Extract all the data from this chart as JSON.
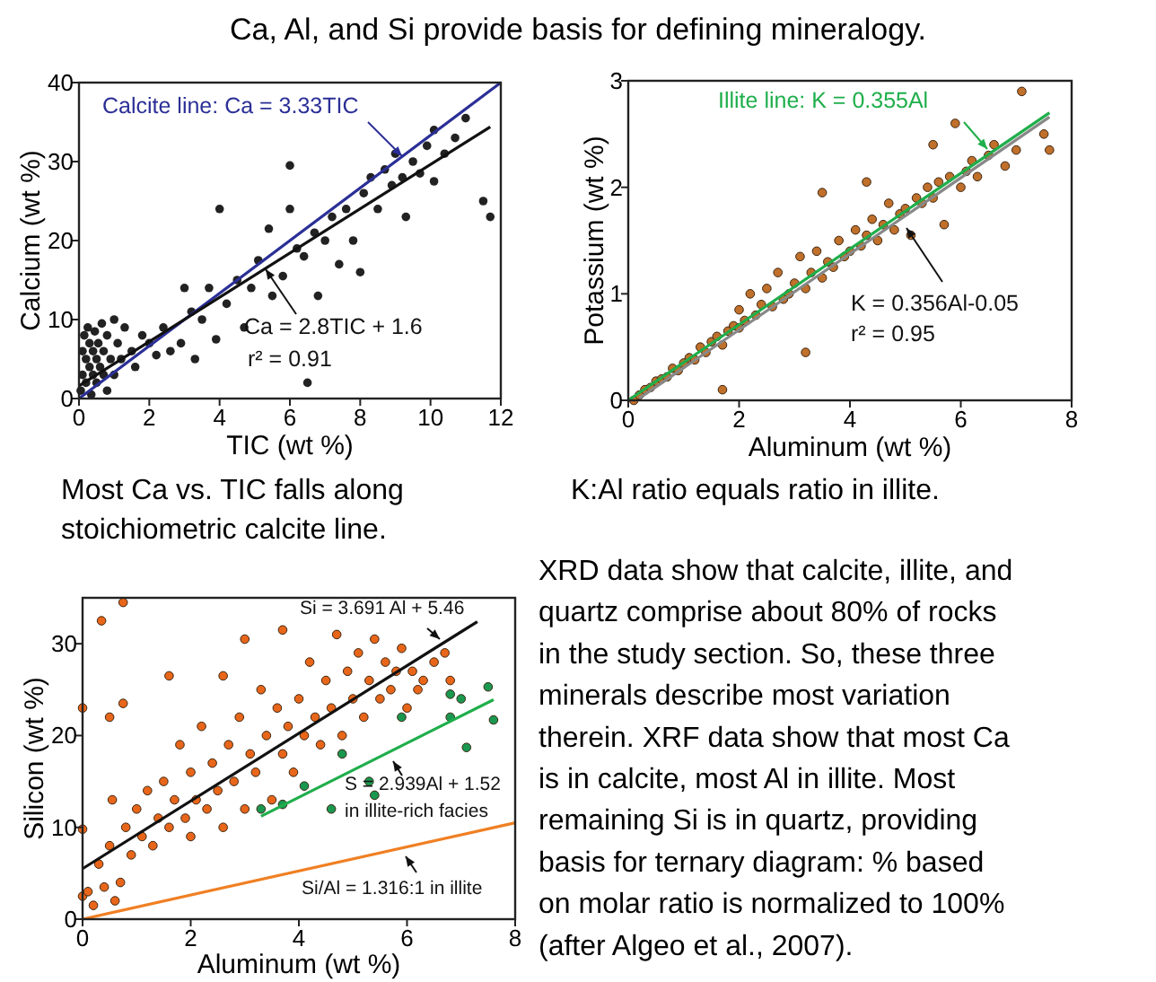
{
  "chart_data": [
    {
      "type": "scatter",
      "xlabel": "TIC (wt %)",
      "ylabel": "Calcium (wt %)",
      "xlim": [
        0,
        12
      ],
      "ylim": [
        0,
        40
      ],
      "xticks": [
        0,
        2,
        4,
        6,
        8,
        10,
        12
      ],
      "yticks": [
        0,
        10,
        20,
        30,
        40
      ],
      "marker": "circle",
      "annotations": [
        "Calcite line: Ca = 3.33TIC",
        "Ca = 2.8TIC + 1.6",
        "r² = 0.91",
        "Most Ca vs. TIC falls along stoichiometric calcite line."
      ],
      "series": [
        {
          "type": "scatter",
          "color": "#222222",
          "x": [
            0.05,
            0.1,
            0.1,
            0.15,
            0.2,
            0.2,
            0.25,
            0.3,
            0.3,
            0.35,
            0.4,
            0.4,
            0.45,
            0.5,
            0.5,
            0.55,
            0.6,
            0.65,
            0.7,
            0.7,
            0.8,
            0.8,
            0.9,
            1.0,
            1.0,
            1.1,
            1.2,
            1.3,
            1.5,
            1.6,
            1.8,
            2.0,
            2.2,
            2.4,
            2.6,
            2.9,
            3.0,
            3.2,
            3.3,
            3.5,
            3.7,
            3.9,
            4.0,
            4.2,
            4.5,
            4.7,
            4.9,
            5.1,
            5.4,
            5.5,
            5.8,
            6.0,
            6.0,
            6.2,
            6.4,
            6.5,
            6.7,
            6.8,
            7.0,
            7.2,
            7.4,
            7.6,
            7.8,
            8.0,
            8.1,
            8.3,
            8.5,
            8.7,
            8.9,
            9.0,
            9.2,
            9.3,
            9.5,
            9.7,
            9.9,
            10.1,
            10.1,
            10.4,
            10.7,
            11.0,
            11.5,
            11.7
          ],
          "values": [
            1,
            3,
            6,
            8,
            2,
            5,
            9,
            4,
            7,
            0.5,
            3,
            6,
            8.5,
            2,
            5,
            7,
            4,
            9.5,
            3,
            6,
            1,
            8,
            5,
            3,
            10,
            7,
            5,
            9,
            6,
            4,
            8,
            7,
            5.5,
            9,
            6,
            7,
            14,
            11,
            5,
            10,
            14,
            7.5,
            24,
            12,
            15,
            9,
            14,
            17.5,
            21.5,
            13,
            15.5,
            29.5,
            24,
            19,
            18,
            2,
            21,
            13,
            20,
            23,
            17,
            24,
            20,
            16,
            26,
            28,
            24,
            29,
            27,
            31,
            28,
            23,
            30,
            28.5,
            32,
            34,
            27.5,
            31,
            33,
            35.5,
            25,
            23
          ]
        },
        {
          "type": "line",
          "marker": "none",
          "color": "#2b2f96",
          "x": [
            0,
            12
          ],
          "values": [
            0,
            40
          ]
        },
        {
          "type": "line",
          "marker": "none",
          "color": "#111111",
          "x": [
            0,
            11.7
          ],
          "values": [
            1.6,
            34.4
          ]
        }
      ]
    },
    {
      "type": "scatter",
      "xlabel": "Aluminum (wt %)",
      "ylabel": "Potassium (wt %)",
      "xlim": [
        0,
        8
      ],
      "ylim": [
        0,
        3
      ],
      "xticks": [
        0,
        2,
        4,
        6,
        8
      ],
      "yticks": [
        0,
        1,
        2,
        3
      ],
      "marker": "circle",
      "annotations": [
        "Illite line: K = 0.355Al",
        "K = 0.356Al-0.05",
        "r² = 0.95",
        "K:Al ratio equals ratio in illite."
      ],
      "series": [
        {
          "type": "scatter",
          "color": "#c0702a",
          "x": [
            0.1,
            0.2,
            0.3,
            0.4,
            0.5,
            0.6,
            0.7,
            0.8,
            0.9,
            1.0,
            1.1,
            1.2,
            1.3,
            1.4,
            1.5,
            1.6,
            1.7,
            1.7,
            1.8,
            1.9,
            2.0,
            2.0,
            2.1,
            2.2,
            2.3,
            2.4,
            2.5,
            2.6,
            2.7,
            2.8,
            2.9,
            3.0,
            3.1,
            3.2,
            3.2,
            3.3,
            3.4,
            3.5,
            3.5,
            3.6,
            3.7,
            3.8,
            3.9,
            4.0,
            4.1,
            4.2,
            4.3,
            4.3,
            4.4,
            4.5,
            4.6,
            4.7,
            4.8,
            4.9,
            5.0,
            5.1,
            5.2,
            5.3,
            5.4,
            5.5,
            5.5,
            5.6,
            5.7,
            5.8,
            5.9,
            6.0,
            6.1,
            6.2,
            6.3,
            6.5,
            6.6,
            6.8,
            7.0,
            7.1,
            7.5,
            7.6
          ],
          "values": [
            0.0,
            0.05,
            0.1,
            0.12,
            0.18,
            0.2,
            0.22,
            0.3,
            0.28,
            0.35,
            0.4,
            0.38,
            0.5,
            0.45,
            0.55,
            0.6,
            0.1,
            0.52,
            0.65,
            0.7,
            0.68,
            0.85,
            0.75,
            1.0,
            0.8,
            0.9,
            1.05,
            0.88,
            1.2,
            0.95,
            1.0,
            1.1,
            1.35,
            0.45,
            1.05,
            1.2,
            1.4,
            1.95,
            1.15,
            1.3,
            1.25,
            1.5,
            1.35,
            1.4,
            1.6,
            1.45,
            2.05,
            1.55,
            1.7,
            1.5,
            1.65,
            1.85,
            1.6,
            1.75,
            1.8,
            1.55,
            1.9,
            1.85,
            2.0,
            2.4,
            1.9,
            2.05,
            1.65,
            2.1,
            2.6,
            2.0,
            2.15,
            2.25,
            2.1,
            2.3,
            2.4,
            2.2,
            2.35,
            2.9,
            2.5,
            2.35
          ]
        },
        {
          "type": "line",
          "marker": "none",
          "color": "#888888",
          "x": [
            0.2,
            7.6
          ],
          "values": [
            0.02,
            2.66
          ]
        },
        {
          "type": "line",
          "marker": "none",
          "color": "#1fae4b",
          "x": [
            0,
            7.6
          ],
          "values": [
            0,
            2.7
          ]
        }
      ]
    },
    {
      "type": "scatter",
      "xlabel": "Aluminum (wt %)",
      "ylabel": "Silicon (wt %)",
      "xlim": [
        0,
        8
      ],
      "ylim": [
        0,
        35
      ],
      "xticks": [
        0,
        2,
        4,
        6,
        8
      ],
      "yticks": [
        0,
        10,
        20,
        30
      ],
      "marker": "circle",
      "annotations": [
        "Si = 3.691 Al + 5.46",
        "S = 2.939Al + 1.52",
        "in illite-rich facies",
        "Si/Al = 1.316:1 in illite"
      ],
      "series": [
        {
          "type": "scatter",
          "color": "#e8661a",
          "x": [
            0,
            0,
            0,
            0.1,
            0.2,
            0.3,
            0.35,
            0.4,
            0.5,
            0.5,
            0.55,
            0.6,
            0.7,
            0.75,
            0.75,
            0.8,
            0.9,
            1.0,
            1.1,
            1.2,
            1.3,
            1.4,
            1.5,
            1.6,
            1.6,
            1.7,
            1.8,
            1.9,
            2.0,
            2.0,
            2.1,
            2.2,
            2.3,
            2.4,
            2.5,
            2.6,
            2.6,
            2.7,
            2.8,
            2.9,
            3.0,
            3.0,
            3.1,
            3.2,
            3.3,
            3.4,
            3.5,
            3.6,
            3.7,
            3.7,
            3.8,
            3.9,
            4.0,
            4.1,
            4.2,
            4.3,
            4.4,
            4.5,
            4.6,
            4.7,
            4.8,
            4.9,
            5.0,
            5.1,
            5.2,
            5.3,
            5.4,
            5.5,
            5.6,
            5.7,
            5.8,
            5.9,
            6.0,
            6.1,
            6.2,
            6.3,
            6.5,
            6.7,
            6.8
          ],
          "values": [
            2.5,
            9.8,
            23,
            3,
            1.5,
            6,
            32.5,
            3.5,
            22,
            8,
            13,
            2,
            4,
            34.5,
            23.5,
            10,
            7,
            12,
            9,
            14,
            8,
            11,
            15,
            26.5,
            10,
            13,
            19,
            11,
            16,
            9,
            13,
            21,
            12,
            17,
            14,
            26.5,
            10,
            19,
            15,
            22,
            12,
            30.5,
            18,
            16,
            25,
            20,
            13,
            23,
            31.5,
            18,
            21,
            16,
            24,
            20,
            28,
            22,
            19,
            26,
            23,
            31,
            20,
            27,
            24,
            29,
            22,
            26,
            30.5,
            24,
            28,
            25,
            27,
            29.5,
            23,
            27,
            25,
            26,
            28,
            29,
            26
          ]
        },
        {
          "type": "scatter",
          "color": "#1a9850",
          "x": [
            3.3,
            3.7,
            4.1,
            4.6,
            4.8,
            5.3,
            5.4,
            5.9,
            6.8,
            6.8,
            7.0,
            7.1,
            7.5,
            7.6
          ],
          "values": [
            12,
            12.5,
            14.5,
            12,
            18,
            15,
            13.5,
            22,
            24.5,
            22,
            24,
            18.7,
            25.3,
            21.7
          ]
        },
        {
          "type": "line",
          "marker": "none",
          "color": "#111111",
          "x": [
            0,
            7.3
          ],
          "values": [
            5.5,
            32.4
          ]
        },
        {
          "type": "line",
          "marker": "none",
          "color": "#1fae4b",
          "x": [
            3.3,
            7.6
          ],
          "values": [
            11.2,
            23.9
          ]
        },
        {
          "type": "line",
          "marker": "none",
          "color": "#f07f22",
          "x": [
            0,
            8
          ],
          "values": [
            0,
            10.5
          ]
        }
      ]
    },
    {
      "type": "other",
      "title": "Ca, Al, and Si provide basis for defining mineralogy.",
      "annotations": [
        "XRD data show that calcite, illite, and",
        "quartz comprise about 80% of rocks",
        "in the study section. So, these three",
        "minerals describe most variation",
        "therein. XRF data show that most Ca",
        "is in calcite, most Al in illite. Most",
        "remaining Si is in quartz, providing",
        "basis for ternary diagram: % based",
        "on molar ratio is normalized to 100%",
        "(after Algeo et al., 2007)."
      ]
    }
  ]
}
